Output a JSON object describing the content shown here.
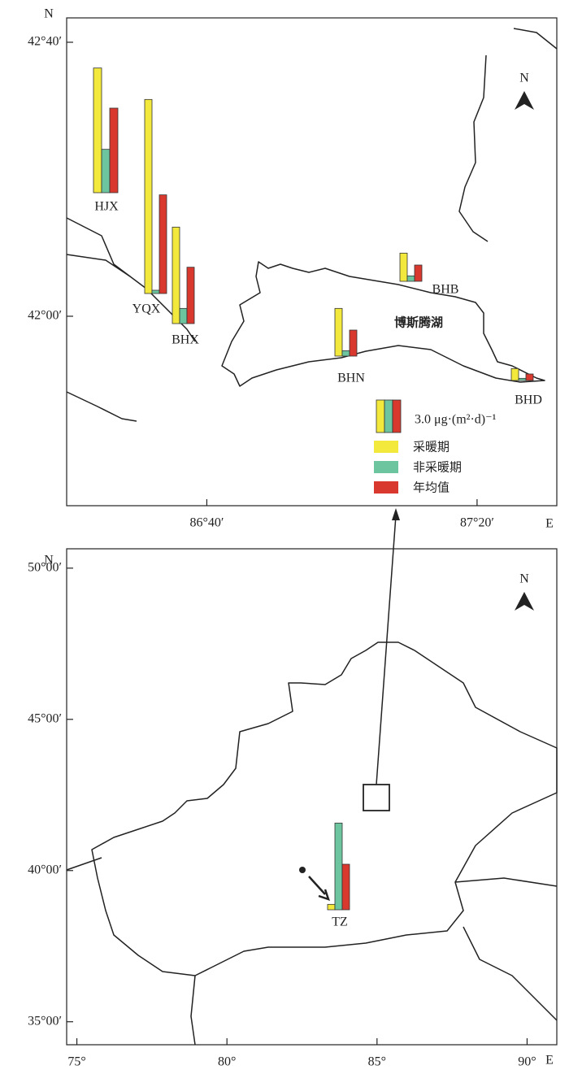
{
  "top_map": {
    "lat_label": "N",
    "lon_label": "E",
    "north": "N",
    "lake": "博斯腾湖",
    "xlim": [
      86.321,
      87.53
    ],
    "ylim": [
      41.539,
      42.726
    ],
    "xticks": [
      {
        "value": 86.6667,
        "label": "86°40′"
      },
      {
        "value": 87.3333,
        "label": "87°20′"
      }
    ],
    "yticks": [
      {
        "value": 42.6667,
        "label": "42°40′"
      },
      {
        "value": 42,
        "label": "42°00′"
      }
    ],
    "sites": [
      {
        "name": "HJX",
        "values": [
          11.5,
          4.0,
          7.8
        ]
      },
      {
        "name": "YQX",
        "values": [
          17.9,
          0.3,
          9.1
        ]
      },
      {
        "name": "BHX",
        "values": [
          8.9,
          1.4,
          5.2
        ]
      },
      {
        "name": "BHN",
        "values": [
          4.4,
          0.5,
          2.4
        ]
      },
      {
        "name": "BHB",
        "values": [
          2.6,
          0.5,
          1.5
        ]
      },
      {
        "name": "BHD",
        "values": [
          1.1,
          0.2,
          0.6
        ]
      }
    ]
  },
  "bottom_map": {
    "lat_label": "N",
    "lon_label": "E",
    "north": "N",
    "xlim": [
      74.66,
      90.99
    ],
    "ylim": [
      34.24,
      50.64
    ],
    "xticks": [
      {
        "value": 75,
        "label": "75°"
      },
      {
        "value": 80,
        "label": "80°"
      },
      {
        "value": 85,
        "label": "85°"
      },
      {
        "value": 90,
        "label": "90°"
      }
    ],
    "yticks": [
      {
        "value": 50,
        "label": "50°00′"
      },
      {
        "value": 45,
        "label": "45°00′"
      },
      {
        "value": 40,
        "label": "40°00′"
      },
      {
        "value": 35,
        "label": "35°00′"
      }
    ],
    "sites": [
      {
        "name": "TZ",
        "values": [
          0.5,
          8.0,
          4.2
        ]
      }
    ]
  },
  "legend": {
    "scale": {
      "value": 3.0,
      "label": "3.0 μg·(m²·d)⁻¹"
    },
    "series": [
      {
        "name": "采暖期",
        "color": "#f2e93c"
      },
      {
        "name": "非采暖期",
        "color": "#6dc5a0"
      },
      {
        "name": "年均值",
        "color": "#d9382e"
      }
    ]
  }
}
